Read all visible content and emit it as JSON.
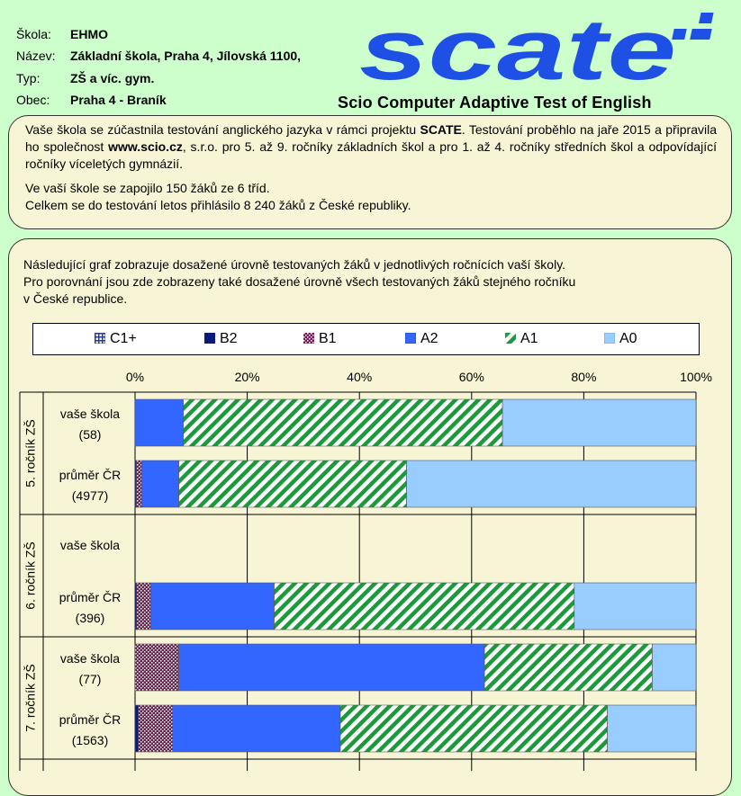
{
  "school_info": [
    {
      "label": "Škola:",
      "value": "EHMO"
    },
    {
      "label": "Název:",
      "value": "Základní škola, Praha 4, Jílovská 1100,"
    },
    {
      "label": "Typ:",
      "value": "ZŠ a víc. gym."
    },
    {
      "label": "Obec:",
      "value": "Praha 4 - Braník"
    }
  ],
  "logo": {
    "text": "scate",
    "color": "#1e50e6"
  },
  "subtitle": "Scio Computer Adaptive Test of English",
  "intro": {
    "p1_a": "Vaše škola se zúčastnila testování anglického jazyka v rámci projektu ",
    "p1_b": "SCATE",
    "p1_c": ". Testování proběhlo na jaře 2015 a připravila ho společnost ",
    "p1_d": "www.scio.cz",
    "p1_e": ", s.r.o. pro 5. až 9. ročníky základních škol a pro 1. až 4. ročníky středních škol a odpovídající ročníky víceletých gymnázií.",
    "p2": "Ve vaší škole se zapojilo 150 žáků ze 6 tříd.",
    "p3": "Celkem se do testování letos přihlásilo 8 240 žáků z České republiky."
  },
  "graph_description": {
    "line1": "Následující graf zobrazuje dosažené úrovně testovaných žáků v jednotlivých ročnících vaší školy.",
    "line2": "Pro porovnání jsou zde zobrazeny také dosažené úrovně všech testovaných žáků stejného ročníku",
    "line3": "v České republice."
  },
  "chart_data": {
    "type": "bar",
    "orientation": "horizontal",
    "stacked": "percent",
    "x_ticks": [
      "0%",
      "20%",
      "40%",
      "60%",
      "80%",
      "100%"
    ],
    "xlim": [
      0,
      100
    ],
    "legend": [
      "C1+",
      "B2",
      "B1",
      "A2",
      "A1",
      "A0"
    ],
    "legend_placement": "top",
    "colors": {
      "C1+": "#2a3a8c",
      "B2": "#0a1a7a",
      "B1": "#7a1a5a",
      "A2": "#3366ff",
      "A1": "#1a9a3a",
      "A0": "#99ccff"
    },
    "groups": [
      {
        "label": "5. ročník ZŠ",
        "rows": [
          {
            "label": "vaše škola",
            "count": "(58)",
            "values": {
              "C1+": 0,
              "B2": 0,
              "B1": 0,
              "A2": 8.6,
              "A1": 56.9,
              "A0": 34.5
            }
          },
          {
            "label": "průměr ČR",
            "count": "(4977)",
            "values": {
              "C1+": 0,
              "B2": 0.2,
              "B1": 1.0,
              "A2": 6.6,
              "A1": 40.6,
              "A0": 51.6
            }
          }
        ]
      },
      {
        "label": "6. ročník ZŠ",
        "rows": [
          {
            "label": "vaše škola",
            "count": "",
            "values": null
          },
          {
            "label": "průměr ČR",
            "count": "(396)",
            "values": {
              "C1+": 0,
              "B2": 0.3,
              "B1": 2.5,
              "A2": 22.0,
              "A1": 53.5,
              "A0": 21.7
            }
          }
        ]
      },
      {
        "label": "7. ročník ZŠ",
        "rows": [
          {
            "label": "vaše škola",
            "count": "(77)",
            "values": {
              "C1+": 0,
              "B2": 0,
              "B1": 7.8,
              "A2": 54.5,
              "A1": 29.9,
              "A0": 7.8
            }
          },
          {
            "label": "průměr ČR",
            "count": "(1563)",
            "values": {
              "C1+": 0,
              "B2": 0.6,
              "B1": 6.1,
              "A2": 29.9,
              "A1": 47.6,
              "A0": 15.8
            }
          }
        ]
      }
    ]
  }
}
